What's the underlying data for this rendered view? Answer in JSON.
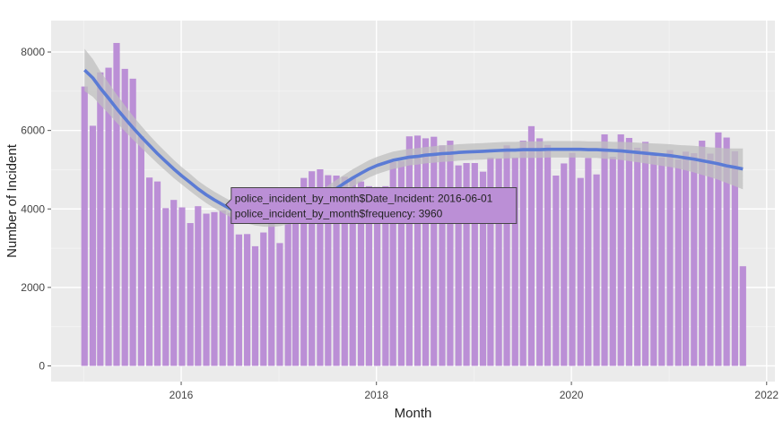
{
  "toolbar": {
    "buttons": [
      {
        "name": "download-plot-button",
        "icon": "camera-icon"
      },
      {
        "name": "zoom-button",
        "icon": "zoom-icon",
        "active": true
      },
      {
        "name": "pan-button",
        "icon": "pan-icon"
      },
      {
        "name": "box-select-button",
        "icon": "box-select-icon"
      },
      {
        "name": "lasso-select-button",
        "icon": "lasso-icon"
      },
      {
        "name": "zoom-in-button",
        "icon": "zoom-in-icon"
      },
      {
        "name": "zoom-out-button",
        "icon": "zoom-out-icon"
      },
      {
        "name": "autoscale-button",
        "icon": "autoscale-icon"
      },
      {
        "name": "reset-axes-button",
        "icon": "home-icon"
      },
      {
        "name": "show-closest-button",
        "icon": "hover-closest-icon"
      },
      {
        "name": "compare-hover-button",
        "icon": "hover-compare-icon"
      },
      {
        "name": "plotly-logo-button",
        "icon": "plotly-logo-icon"
      }
    ]
  },
  "chart_data": {
    "type": "bar",
    "xlabel": "Month",
    "ylabel": "Number of Incident",
    "x_start": "2015-01",
    "xlim": [
      "2014-09-01",
      "2022-02-01"
    ],
    "ylim": [
      -400,
      8800
    ],
    "xticks": [
      "2016",
      "2018",
      "2020",
      "2022"
    ],
    "xtick_dates": [
      "2016-01-01",
      "2018-01-01",
      "2020-01-01",
      "2022-01-01"
    ],
    "yticks": [
      0,
      2000,
      4000,
      6000,
      8000
    ],
    "grid": true,
    "bar_color": "#bb8fd6",
    "trend_color": "#5b7bd5",
    "band_color": "#bfbfbf",
    "background": "#ebebeb",
    "series": [
      {
        "kind": "bar",
        "values": [
          7120,
          6120,
          7480,
          7600,
          8230,
          7570,
          7320,
          5850,
          4800,
          4700,
          4020,
          4230,
          4040,
          3640,
          4070,
          3880,
          3920,
          3960,
          3900,
          3350,
          3360,
          3050,
          3400,
          3640,
          3130,
          3870,
          4200,
          4790,
          4960,
          5010,
          4860,
          4850,
          4820,
          4780,
          4700,
          4580,
          4560,
          4580,
          5200,
          5220,
          5850,
          5870,
          5800,
          5840,
          5620,
          5740,
          5110,
          5170,
          5170,
          4950,
          5310,
          5290,
          5620,
          5310,
          5740,
          6110,
          5800,
          5630,
          4850,
          5160,
          5430,
          4790,
          5300,
          4880,
          5900,
          5330,
          5900,
          5810,
          5560,
          5710,
          5380,
          5320,
          5500,
          5260,
          5460,
          5420,
          5740,
          5410,
          5950,
          5820,
          5470,
          2540
        ]
      },
      {
        "kind": "trend",
        "values": [
          7540,
          7340,
          7080,
          6820,
          6560,
          6310,
          6070,
          5840,
          5620,
          5410,
          5210,
          5020,
          4840,
          4670,
          4510,
          4360,
          4230,
          4110,
          4000,
          3910,
          3840,
          3790,
          3760,
          3750,
          3770,
          3820,
          3890,
          3990,
          4110,
          4240,
          4380,
          4520,
          4660,
          4790,
          4910,
          5020,
          5110,
          5180,
          5240,
          5280,
          5320,
          5340,
          5370,
          5390,
          5410,
          5420,
          5440,
          5450,
          5460,
          5470,
          5480,
          5490,
          5500,
          5500,
          5510,
          5510,
          5510,
          5520,
          5520,
          5520,
          5520,
          5520,
          5510,
          5510,
          5500,
          5490,
          5480,
          5460,
          5440,
          5420,
          5400,
          5380,
          5360,
          5330,
          5300,
          5270,
          5230,
          5190,
          5150,
          5100,
          5060,
          5020
        ]
      },
      {
        "kind": "band-half-width",
        "values": [
          540,
          480,
          430,
          390,
          360,
          330,
          300,
          280,
          260,
          250,
          240,
          230,
          220,
          220,
          210,
          210,
          210,
          210,
          210,
          210,
          210,
          210,
          210,
          210,
          210,
          210,
          210,
          220,
          220,
          220,
          220,
          220,
          220,
          220,
          220,
          220,
          220,
          220,
          220,
          220,
          210,
          210,
          210,
          210,
          210,
          210,
          210,
          210,
          210,
          210,
          210,
          210,
          210,
          210,
          210,
          210,
          210,
          210,
          210,
          210,
          210,
          210,
          210,
          210,
          220,
          220,
          230,
          240,
          250,
          260,
          270,
          280,
          290,
          300,
          320,
          340,
          360,
          380,
          410,
          440,
          480,
          520
        ]
      }
    ],
    "hover": {
      "date_label": "police_incident_by_month$Date_Incident: 2016-06-01",
      "value_label": "police_incident_by_month$frequency: 3960",
      "bar_index": 17
    }
  }
}
